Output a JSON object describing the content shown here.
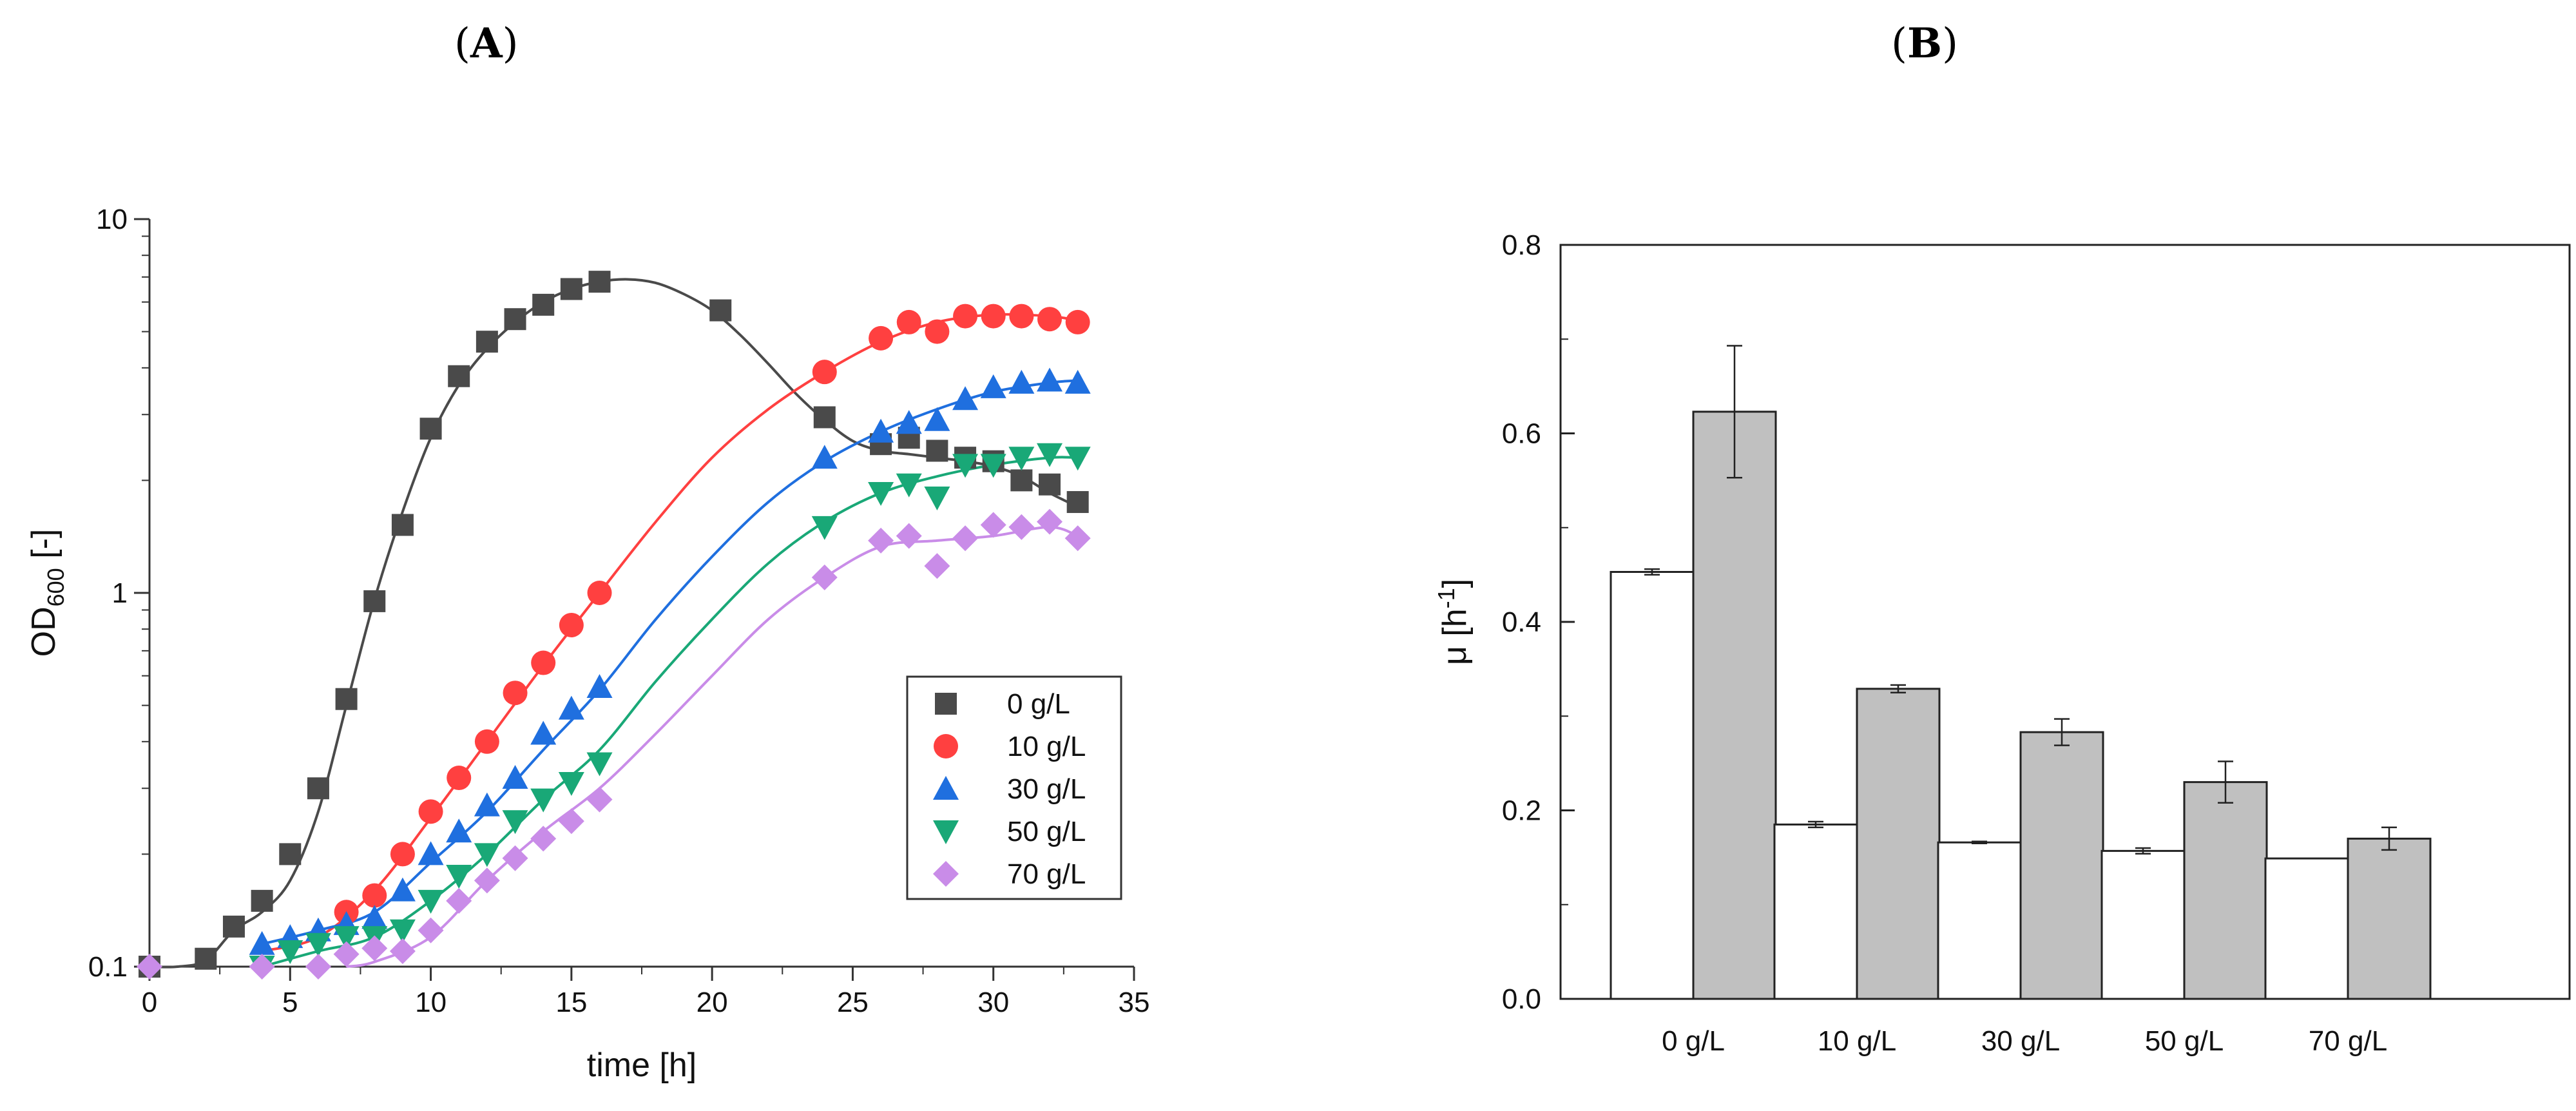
{
  "figure_labels": {
    "a": "A",
    "b": "B"
  },
  "chart_data": [
    {
      "id": "A",
      "type": "scatter",
      "xlabel": "time [h]",
      "ylabel_main": "OD",
      "ylabel_sub": "600",
      "ylabel_suffix": " [-]",
      "yscale": "log",
      "xlim": [
        0,
        35
      ],
      "ylim": [
        0.1,
        10
      ],
      "xticks": [
        0,
        5,
        10,
        15,
        20,
        25,
        30,
        35
      ],
      "yticks": [
        0.1,
        1,
        10
      ],
      "ytick_labels": [
        "0.1",
        "1",
        "10"
      ],
      "legend_position": "right-center",
      "series": [
        {
          "name": "0 g/L",
          "color": "#4a4a4a",
          "marker": "square",
          "x": [
            0,
            2,
            3,
            4,
            5,
            6,
            7,
            8,
            9,
            10,
            11,
            12,
            13,
            14,
            15,
            16,
            20.3,
            24,
            26,
            27,
            28,
            29,
            30,
            31,
            32,
            33
          ],
          "y": [
            0.1,
            0.105,
            0.128,
            0.15,
            0.2,
            0.3,
            0.52,
            0.95,
            1.52,
            2.75,
            3.8,
            4.7,
            5.4,
            5.9,
            6.5,
            6.8,
            5.7,
            2.95,
            2.5,
            2.6,
            2.4,
            2.3,
            2.25,
            2.0,
            1.95,
            1.75
          ],
          "fit": [
            [
              0,
              0.1
            ],
            [
              1,
              0.1
            ],
            [
              2,
              0.104
            ],
            [
              3,
              0.125
            ],
            [
              4,
              0.14
            ],
            [
              5,
              0.17
            ],
            [
              6,
              0.26
            ],
            [
              7,
              0.5
            ],
            [
              8,
              0.96
            ],
            [
              9,
              1.65
            ],
            [
              10,
              2.6
            ],
            [
              11,
              3.6
            ],
            [
              12,
              4.5
            ],
            [
              13,
              5.3
            ],
            [
              14,
              6.0
            ],
            [
              15,
              6.5
            ],
            [
              16,
              6.8
            ],
            [
              17,
              6.9
            ],
            [
              18,
              6.75
            ],
            [
              19,
              6.3
            ],
            [
              20,
              5.7
            ],
            [
              21,
              4.9
            ],
            [
              22,
              4.1
            ],
            [
              23,
              3.4
            ],
            [
              24,
              2.9
            ],
            [
              25,
              2.55
            ],
            [
              26,
              2.4
            ],
            [
              27,
              2.35
            ],
            [
              28,
              2.3
            ],
            [
              29,
              2.25
            ],
            [
              30,
              2.18
            ],
            [
              31,
              2.05
            ],
            [
              32,
              1.85
            ],
            [
              33,
              1.7
            ]
          ]
        },
        {
          "name": "10 g/L",
          "color": "#ff4040",
          "marker": "circle",
          "x": [
            7,
            8,
            9,
            10,
            11,
            12,
            13,
            14,
            15,
            16,
            24,
            26,
            27,
            28,
            29,
            30,
            31,
            32,
            33
          ],
          "y": [
            0.14,
            0.155,
            0.2,
            0.26,
            0.32,
            0.4,
            0.54,
            0.65,
            0.82,
            1.0,
            3.9,
            4.8,
            5.3,
            5.0,
            5.5,
            5.5,
            5.5,
            5.4,
            5.3
          ],
          "fit": [
            [
              4,
              0.11
            ],
            [
              6,
              0.12
            ],
            [
              8,
              0.16
            ],
            [
              10,
              0.25
            ],
            [
              12,
              0.4
            ],
            [
              14,
              0.64
            ],
            [
              16,
              1.0
            ],
            [
              18,
              1.55
            ],
            [
              20,
              2.3
            ],
            [
              22,
              3.1
            ],
            [
              24,
              3.9
            ],
            [
              26,
              4.7
            ],
            [
              28,
              5.3
            ],
            [
              30,
              5.55
            ],
            [
              32,
              5.5
            ],
            [
              33,
              5.35
            ]
          ]
        },
        {
          "name": "30 g/L",
          "color": "#1f6fdf",
          "marker": "triangle-up",
          "x": [
            4,
            5,
            6,
            7,
            8,
            9,
            10,
            11,
            12,
            13,
            14,
            15,
            16,
            24,
            26,
            27,
            28,
            29,
            30,
            31,
            32,
            33
          ],
          "y": [
            0.115,
            0.12,
            0.125,
            0.13,
            0.135,
            0.16,
            0.2,
            0.23,
            0.27,
            0.32,
            0.42,
            0.49,
            0.56,
            2.3,
            2.7,
            2.85,
            2.9,
            3.3,
            3.55,
            3.65,
            3.7,
            3.65
          ],
          "fit": [
            [
              4,
              0.115
            ],
            [
              6,
              0.125
            ],
            [
              8,
              0.14
            ],
            [
              10,
              0.19
            ],
            [
              12,
              0.26
            ],
            [
              14,
              0.38
            ],
            [
              16,
              0.55
            ],
            [
              18,
              0.85
            ],
            [
              20,
              1.25
            ],
            [
              22,
              1.75
            ],
            [
              24,
              2.25
            ],
            [
              26,
              2.7
            ],
            [
              28,
              3.1
            ],
            [
              30,
              3.45
            ],
            [
              32,
              3.65
            ],
            [
              33,
              3.7
            ]
          ]
        },
        {
          "name": "50 g/L",
          "color": "#19a877",
          "marker": "triangle-down",
          "x": [
            4,
            5,
            6,
            7,
            8,
            9,
            10,
            11,
            12,
            13,
            14,
            15,
            16,
            24,
            26,
            27,
            28,
            29,
            30,
            31,
            32,
            33
          ],
          "y": [
            0.1,
            0.11,
            0.115,
            0.12,
            0.12,
            0.125,
            0.15,
            0.175,
            0.2,
            0.245,
            0.28,
            0.31,
            0.35,
            1.5,
            1.85,
            1.95,
            1.8,
            2.2,
            2.2,
            2.3,
            2.35,
            2.3
          ],
          "fit": [
            [
              4,
              0.1
            ],
            [
              6,
              0.11
            ],
            [
              8,
              0.12
            ],
            [
              10,
              0.15
            ],
            [
              12,
              0.2
            ],
            [
              14,
              0.28
            ],
            [
              16,
              0.38
            ],
            [
              18,
              0.58
            ],
            [
              20,
              0.85
            ],
            [
              22,
              1.2
            ],
            [
              24,
              1.55
            ],
            [
              26,
              1.85
            ],
            [
              28,
              2.05
            ],
            [
              30,
              2.2
            ],
            [
              32,
              2.3
            ],
            [
              33,
              2.3
            ]
          ]
        },
        {
          "name": "70 g/L",
          "color": "#c98ce8",
          "marker": "diamond",
          "x": [
            0,
            4,
            6,
            7,
            8,
            9,
            10,
            11,
            12,
            13,
            14,
            15,
            16,
            24,
            26,
            27,
            28,
            29,
            30,
            31,
            32,
            33
          ],
          "y": [
            0.1,
            0.1,
            0.1,
            0.108,
            0.112,
            0.11,
            0.125,
            0.15,
            0.17,
            0.195,
            0.22,
            0.245,
            0.28,
            1.1,
            1.38,
            1.42,
            1.18,
            1.4,
            1.52,
            1.5,
            1.55,
            1.4
          ],
          "fit": [
            [
              7,
              0.1
            ],
            [
              8,
              0.103
            ],
            [
              10,
              0.12
            ],
            [
              12,
              0.17
            ],
            [
              14,
              0.23
            ],
            [
              16,
              0.3
            ],
            [
              18,
              0.42
            ],
            [
              20,
              0.6
            ],
            [
              22,
              0.85
            ],
            [
              24,
              1.1
            ],
            [
              26,
              1.33
            ],
            [
              28,
              1.38
            ],
            [
              30,
              1.42
            ],
            [
              32,
              1.5
            ],
            [
              33,
              1.42
            ]
          ]
        }
      ]
    },
    {
      "id": "B",
      "type": "bar",
      "ylabel": "μ [h",
      "ylabel_sup": "-1",
      "ylabel_close": "]",
      "xlabel": "",
      "ylim": [
        0,
        0.8
      ],
      "yticks": [
        0.0,
        0.2,
        0.4,
        0.6,
        0.8
      ],
      "ytick_labels": [
        "0.0",
        "0.2",
        "0.4",
        "0.6",
        "0.8"
      ],
      "categories": [
        "0 g/L",
        "10 g/L",
        "30 g/L",
        "50 g/L",
        "70 g/L"
      ],
      "series": [
        {
          "name": "white",
          "color": "#ffffff",
          "values": [
            0.453,
            0.185,
            0.166,
            0.157,
            0.149
          ],
          "errors": [
            0.003,
            0.003,
            0.001,
            0.003,
            0.0
          ]
        },
        {
          "name": "grey",
          "color": "#c0c0c0",
          "values": [
            0.623,
            0.329,
            0.283,
            0.23,
            0.17
          ],
          "errors": [
            0.07,
            0.004,
            0.014,
            0.022,
            0.012
          ]
        }
      ]
    }
  ]
}
